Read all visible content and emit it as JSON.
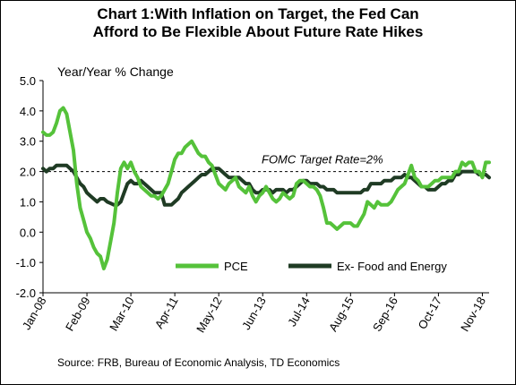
{
  "chart_data": {
    "type": "line",
    "title_line1": "Chart 1:With Inflation on Target, the Fed Can",
    "title_line2": "Afford to Be Flexible About Future Rate Hikes",
    "ylabel": "Year/Year % Change",
    "source": "Source: FRB, Bureau of Economic Analysis, TD Economics",
    "ylim": [
      -2.0,
      5.0
    ],
    "y_ticks": [
      "5.0",
      "4.0",
      "3.0",
      "2.0",
      "1.0",
      "0.0",
      "-1.0",
      "-2.0"
    ],
    "x_ticks": [
      "Jan-08",
      "Feb-09",
      "Mar-10",
      "Apr-11",
      "May-12",
      "Jun-13",
      "Jul-14",
      "Aug-15",
      "Sep-16",
      "Oct-17",
      "Nov-18"
    ],
    "annotation": "FOMC Target Rate=2%",
    "target_value": 2.0,
    "grid": false,
    "legend_position": "bottom-center",
    "series": [
      {
        "name": "PCE",
        "color": "#55c23a",
        "points": [
          [
            "Jan-08",
            3.3
          ],
          [
            "Feb-08",
            3.2
          ],
          [
            "Mar-08",
            3.2
          ],
          [
            "Apr-08",
            3.3
          ],
          [
            "May-08",
            3.6
          ],
          [
            "Jun-08",
            4.0
          ],
          [
            "Jul-08",
            4.1
          ],
          [
            "Aug-08",
            3.9
          ],
          [
            "Sep-08",
            3.3
          ],
          [
            "Oct-08",
            2.7
          ],
          [
            "Nov-08",
            1.6
          ],
          [
            "Dec-08",
            0.8
          ],
          [
            "Jan-09",
            0.4
          ],
          [
            "Feb-09",
            0.0
          ],
          [
            "Mar-09",
            -0.2
          ],
          [
            "Apr-09",
            -0.5
          ],
          [
            "May-09",
            -0.7
          ],
          [
            "Jun-09",
            -0.8
          ],
          [
            "Jul-09",
            -1.2
          ],
          [
            "Aug-09",
            -0.9
          ],
          [
            "Sep-09",
            -0.3
          ],
          [
            "Oct-09",
            0.3
          ],
          [
            "Nov-09",
            1.3
          ],
          [
            "Dec-09",
            2.1
          ],
          [
            "Jan-10",
            2.3
          ],
          [
            "Feb-10",
            2.1
          ],
          [
            "Mar-10",
            2.3
          ],
          [
            "Apr-10",
            2.0
          ],
          [
            "May-10",
            1.8
          ],
          [
            "Jun-10",
            1.5
          ],
          [
            "Jul-10",
            1.4
          ],
          [
            "Aug-10",
            1.3
          ],
          [
            "Sep-10",
            1.2
          ],
          [
            "Oct-10",
            1.2
          ],
          [
            "Nov-10",
            1.1
          ],
          [
            "Dec-10",
            1.2
          ],
          [
            "Jan-11",
            1.4
          ],
          [
            "Feb-11",
            1.6
          ],
          [
            "Mar-11",
            2.0
          ],
          [
            "Apr-11",
            2.4
          ],
          [
            "May-11",
            2.6
          ],
          [
            "Jun-11",
            2.6
          ],
          [
            "Jul-11",
            2.8
          ],
          [
            "Aug-11",
            2.9
          ],
          [
            "Sep-11",
            3.0
          ],
          [
            "Oct-11",
            2.8
          ],
          [
            "Nov-11",
            2.6
          ],
          [
            "Dec-11",
            2.5
          ],
          [
            "Jan-12",
            2.5
          ],
          [
            "Feb-12",
            2.3
          ],
          [
            "Mar-12",
            2.2
          ],
          [
            "Apr-12",
            1.9
          ],
          [
            "May-12",
            1.6
          ],
          [
            "Jun-12",
            1.5
          ],
          [
            "Jul-12",
            1.4
          ],
          [
            "Aug-12",
            1.6
          ],
          [
            "Sep-12",
            1.7
          ],
          [
            "Oct-12",
            1.8
          ],
          [
            "Nov-12",
            1.5
          ],
          [
            "Dec-12",
            1.4
          ],
          [
            "Jan-13",
            1.3
          ],
          [
            "Feb-13",
            1.5
          ],
          [
            "Mar-13",
            1.2
          ],
          [
            "Apr-13",
            1.0
          ],
          [
            "May-13",
            1.2
          ],
          [
            "Jun-13",
            1.3
          ],
          [
            "Jul-13",
            1.5
          ],
          [
            "Aug-13",
            1.3
          ],
          [
            "Sep-13",
            1.1
          ],
          [
            "Oct-13",
            1.0
          ],
          [
            "Nov-13",
            1.1
          ],
          [
            "Dec-13",
            1.3
          ],
          [
            "Jan-14",
            1.2
          ],
          [
            "Feb-14",
            1.1
          ],
          [
            "Mar-14",
            1.2
          ],
          [
            "Apr-14",
            1.6
          ],
          [
            "May-14",
            1.7
          ],
          [
            "Jun-14",
            1.7
          ],
          [
            "Jul-14",
            1.6
          ],
          [
            "Aug-14",
            1.5
          ],
          [
            "Sep-14",
            1.5
          ],
          [
            "Oct-14",
            1.4
          ],
          [
            "Nov-14",
            1.2
          ],
          [
            "Dec-14",
            0.8
          ],
          [
            "Jan-15",
            0.3
          ],
          [
            "Feb-15",
            0.3
          ],
          [
            "Mar-15",
            0.2
          ],
          [
            "Apr-15",
            0.1
          ],
          [
            "May-15",
            0.2
          ],
          [
            "Jun-15",
            0.3
          ],
          [
            "Jul-15",
            0.3
          ],
          [
            "Aug-15",
            0.3
          ],
          [
            "Sep-15",
            0.2
          ],
          [
            "Oct-15",
            0.2
          ],
          [
            "Nov-15",
            0.4
          ],
          [
            "Dec-15",
            0.6
          ],
          [
            "Jan-16",
            1.0
          ],
          [
            "Feb-16",
            0.9
          ],
          [
            "Mar-16",
            0.8
          ],
          [
            "Apr-16",
            1.0
          ],
          [
            "May-16",
            0.9
          ],
          [
            "Jun-16",
            0.9
          ],
          [
            "Jul-16",
            0.9
          ],
          [
            "Aug-16",
            1.0
          ],
          [
            "Sep-16",
            1.2
          ],
          [
            "Oct-16",
            1.4
          ],
          [
            "Nov-16",
            1.5
          ],
          [
            "Dec-16",
            1.6
          ],
          [
            "Jan-17",
            1.9
          ],
          [
            "Feb-17",
            2.2
          ],
          [
            "Mar-17",
            1.8
          ],
          [
            "Apr-17",
            1.7
          ],
          [
            "May-17",
            1.5
          ],
          [
            "Jun-17",
            1.5
          ],
          [
            "Jul-17",
            1.5
          ],
          [
            "Aug-17",
            1.6
          ],
          [
            "Sep-17",
            1.7
          ],
          [
            "Oct-17",
            1.7
          ],
          [
            "Nov-17",
            1.8
          ],
          [
            "Dec-17",
            1.8
          ],
          [
            "Jan-18",
            1.8
          ],
          [
            "Feb-18",
            1.8
          ],
          [
            "Mar-18",
            2.0
          ],
          [
            "Apr-18",
            2.0
          ],
          [
            "May-18",
            2.3
          ],
          [
            "Jun-18",
            2.2
          ],
          [
            "Jul-18",
            2.3
          ],
          [
            "Aug-18",
            2.3
          ],
          [
            "Sep-18",
            2.0
          ],
          [
            "Oct-18",
            2.0
          ],
          [
            "Nov-18",
            1.8
          ],
          [
            "Dec-18",
            2.3
          ],
          [
            "Jan-19",
            2.3
          ]
        ]
      },
      {
        "name": "Ex- Food and Energy",
        "color": "#1f3b24",
        "points": [
          [
            "Jan-08",
            2.1
          ],
          [
            "Feb-08",
            2.0
          ],
          [
            "Mar-08",
            2.1
          ],
          [
            "Apr-08",
            2.1
          ],
          [
            "May-08",
            2.2
          ],
          [
            "Jun-08",
            2.2
          ],
          [
            "Jul-08",
            2.2
          ],
          [
            "Aug-08",
            2.2
          ],
          [
            "Sep-08",
            2.1
          ],
          [
            "Oct-08",
            2.0
          ],
          [
            "Nov-08",
            1.8
          ],
          [
            "Dec-08",
            1.6
          ],
          [
            "Jan-09",
            1.5
          ],
          [
            "Feb-09",
            1.3
          ],
          [
            "Mar-09",
            1.2
          ],
          [
            "Apr-09",
            1.1
          ],
          [
            "May-09",
            1.0
          ],
          [
            "Jun-09",
            1.1
          ],
          [
            "Jul-09",
            1.1
          ],
          [
            "Aug-09",
            1.0
          ],
          [
            "Sep-09",
            0.95
          ],
          [
            "Oct-09",
            0.9
          ],
          [
            "Nov-09",
            0.9
          ],
          [
            "Dec-09",
            1.0
          ],
          [
            "Jan-10",
            1.3
          ],
          [
            "Feb-10",
            1.6
          ],
          [
            "Mar-10",
            1.7
          ],
          [
            "Apr-10",
            1.6
          ],
          [
            "May-10",
            1.6
          ],
          [
            "Jun-10",
            1.7
          ],
          [
            "Jul-10",
            1.6
          ],
          [
            "Aug-10",
            1.5
          ],
          [
            "Sep-10",
            1.4
          ],
          [
            "Oct-10",
            1.3
          ],
          [
            "Nov-10",
            1.3
          ],
          [
            "Dec-10",
            1.3
          ],
          [
            "Jan-11",
            0.9
          ],
          [
            "Feb-11",
            0.9
          ],
          [
            "Mar-11",
            0.9
          ],
          [
            "Apr-11",
            1.0
          ],
          [
            "May-11",
            1.1
          ],
          [
            "Jun-11",
            1.3
          ],
          [
            "Jul-11",
            1.4
          ],
          [
            "Aug-11",
            1.5
          ],
          [
            "Sep-11",
            1.6
          ],
          [
            "Oct-11",
            1.7
          ],
          [
            "Nov-11",
            1.8
          ],
          [
            "Dec-11",
            1.9
          ],
          [
            "Jan-12",
            1.9
          ],
          [
            "Feb-12",
            2.0
          ],
          [
            "Mar-12",
            2.1
          ],
          [
            "Apr-12",
            2.1
          ],
          [
            "May-12",
            2.1
          ],
          [
            "Jun-12",
            2.0
          ],
          [
            "Jul-12",
            1.9
          ],
          [
            "Aug-12",
            1.8
          ],
          [
            "Sep-12",
            1.8
          ],
          [
            "Oct-12",
            1.8
          ],
          [
            "Nov-12",
            1.8
          ],
          [
            "Dec-12",
            1.7
          ],
          [
            "Jan-13",
            1.6
          ],
          [
            "Feb-13",
            1.6
          ],
          [
            "Mar-13",
            1.4
          ],
          [
            "Apr-13",
            1.3
          ],
          [
            "May-13",
            1.3
          ],
          [
            "Jun-13",
            1.4
          ],
          [
            "Jul-13",
            1.4
          ],
          [
            "Aug-13",
            1.4
          ],
          [
            "Sep-13",
            1.3
          ],
          [
            "Oct-13",
            1.4
          ],
          [
            "Nov-13",
            1.4
          ],
          [
            "Dec-13",
            1.4
          ],
          [
            "Jan-14",
            1.3
          ],
          [
            "Feb-14",
            1.4
          ],
          [
            "Mar-14",
            1.4
          ],
          [
            "Apr-14",
            1.5
          ],
          [
            "May-14",
            1.6
          ],
          [
            "Jun-14",
            1.7
          ],
          [
            "Jul-14",
            1.7
          ],
          [
            "Aug-14",
            1.6
          ],
          [
            "Sep-14",
            1.6
          ],
          [
            "Oct-14",
            1.6
          ],
          [
            "Nov-14",
            1.5
          ],
          [
            "Dec-14",
            1.5
          ],
          [
            "Jan-15",
            1.4
          ],
          [
            "Feb-15",
            1.4
          ],
          [
            "Mar-15",
            1.4
          ],
          [
            "Apr-15",
            1.3
          ],
          [
            "May-15",
            1.3
          ],
          [
            "Jun-15",
            1.3
          ],
          [
            "Jul-15",
            1.3
          ],
          [
            "Aug-15",
            1.3
          ],
          [
            "Sep-15",
            1.3
          ],
          [
            "Oct-15",
            1.3
          ],
          [
            "Nov-15",
            1.3
          ],
          [
            "Dec-15",
            1.4
          ],
          [
            "Jan-16",
            1.4
          ],
          [
            "Feb-16",
            1.6
          ],
          [
            "Mar-16",
            1.6
          ],
          [
            "Apr-16",
            1.6
          ],
          [
            "May-16",
            1.6
          ],
          [
            "Jun-16",
            1.7
          ],
          [
            "Jul-16",
            1.7
          ],
          [
            "Aug-16",
            1.7
          ],
          [
            "Sep-16",
            1.8
          ],
          [
            "Oct-16",
            1.8
          ],
          [
            "Nov-16",
            1.8
          ],
          [
            "Dec-16",
            1.9
          ],
          [
            "Jan-17",
            1.8
          ],
          [
            "Feb-17",
            1.8
          ],
          [
            "Mar-17",
            1.7
          ],
          [
            "Apr-17",
            1.6
          ],
          [
            "May-17",
            1.5
          ],
          [
            "Jun-17",
            1.5
          ],
          [
            "Jul-17",
            1.4
          ],
          [
            "Aug-17",
            1.4
          ],
          [
            "Sep-17",
            1.4
          ],
          [
            "Oct-17",
            1.5
          ],
          [
            "Nov-17",
            1.6
          ],
          [
            "Dec-17",
            1.6
          ],
          [
            "Jan-18",
            1.7
          ],
          [
            "Feb-18",
            1.7
          ],
          [
            "Mar-18",
            1.9
          ],
          [
            "Apr-18",
            1.9
          ],
          [
            "May-18",
            2.0
          ],
          [
            "Jun-18",
            2.0
          ],
          [
            "Jul-18",
            2.0
          ],
          [
            "Aug-18",
            2.0
          ],
          [
            "Sep-18",
            2.0
          ],
          [
            "Oct-18",
            1.9
          ],
          [
            "Nov-18",
            1.9
          ],
          [
            "Dec-18",
            1.9
          ],
          [
            "Jan-19",
            1.8
          ]
        ]
      }
    ]
  }
}
